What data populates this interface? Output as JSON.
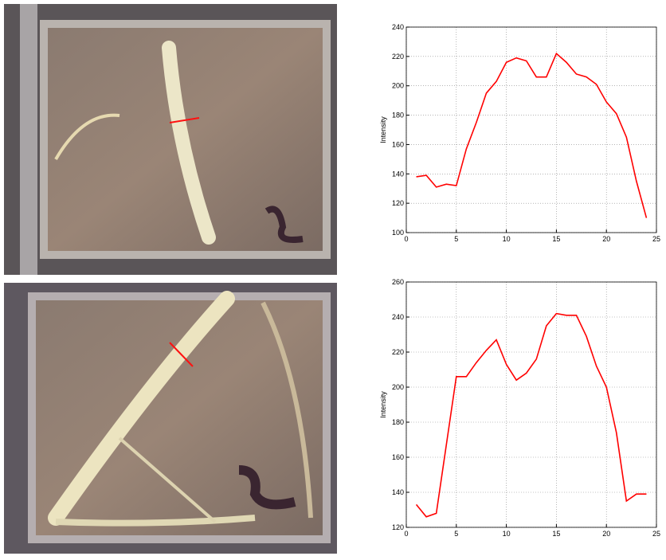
{
  "chart_data": [
    {
      "type": "line",
      "ylabel": "Intensity",
      "x": [
        1,
        2,
        3,
        4,
        5,
        6,
        7,
        8,
        9,
        10,
        11,
        12,
        13,
        14,
        15,
        16,
        17,
        18,
        19,
        20,
        21,
        22,
        23,
        24
      ],
      "series": [
        {
          "color": "#ff0000",
          "values": [
            138,
            139,
            131,
            133,
            132,
            157,
            175,
            195,
            203,
            216,
            219,
            217,
            206,
            206,
            222,
            216,
            208,
            206,
            201,
            189,
            181,
            165,
            135,
            110
          ]
        }
      ],
      "xlim": [
        0,
        25
      ],
      "xticks": [
        0,
        5,
        10,
        15,
        20,
        25
      ],
      "ylim": [
        100,
        240
      ],
      "yticks": [
        100,
        120,
        140,
        160,
        180,
        200,
        220,
        240
      ],
      "grid": true
    },
    {
      "type": "line",
      "ylabel": "Intensity",
      "x": [
        1,
        2,
        3,
        4,
        5,
        6,
        7,
        8,
        9,
        10,
        11,
        12,
        13,
        14,
        15,
        16,
        17,
        18,
        19,
        20,
        21,
        22,
        23,
        24
      ],
      "series": [
        {
          "color": "#ff0000",
          "values": [
            133,
            126,
            128,
            167,
            206,
            206,
            214,
            221,
            227,
            213,
            204,
            208,
            216,
            235,
            242,
            241,
            241,
            229,
            212,
            200,
            174,
            135,
            139,
            139
          ]
        }
      ],
      "xlim": [
        0,
        25
      ],
      "xticks": [
        0,
        5,
        10,
        15,
        20,
        25
      ],
      "ylim": [
        120,
        260
      ],
      "yticks": [
        120,
        140,
        160,
        180,
        200,
        220,
        240,
        260
      ],
      "grid": true
    }
  ]
}
